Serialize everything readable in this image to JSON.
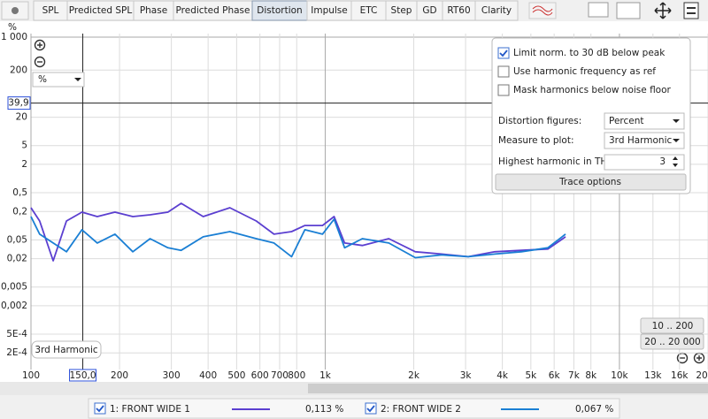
{
  "toolbar": {
    "tabs": [
      "SPL",
      "Predicted SPL",
      "Phase",
      "Predicted Phase",
      "Distortion",
      "Impulse",
      "ETC",
      "Step",
      "GD",
      "RT60",
      "Clarity"
    ],
    "selected": 4
  },
  "chart_data": {
    "type": "line",
    "y_unit": "%",
    "unit_selector": "%",
    "trace_label": "3rd Harmonic",
    "xscale": "log",
    "yscale": "log",
    "grid": true,
    "xlim": [
      100,
      20000
    ],
    "ylim": [
      8.9e-05,
      1188
    ],
    "xticks": [
      100,
      200,
      300,
      400,
      500,
      600,
      700,
      800,
      {
        "value": 1000,
        "label": "1k"
      },
      {
        "value": 2000,
        "label": "2k"
      },
      {
        "value": 3000,
        "label": "3k"
      },
      {
        "value": 4000,
        "label": "4k"
      },
      {
        "value": 5000,
        "label": "5k"
      },
      {
        "value": 6000,
        "label": "6k"
      },
      {
        "value": 7000,
        "label": "7k"
      },
      {
        "value": 8000,
        "label": "8k"
      },
      {
        "value": 10000,
        "label": "10k"
      },
      {
        "value": 13000,
        "label": "13k"
      },
      {
        "value": 16000,
        "label": "16k"
      },
      {
        "value": 20000,
        "label": "20"
      }
    ],
    "yticks": [
      {
        "value": 1000,
        "label": "1 000"
      },
      200,
      20,
      5,
      2,
      {
        "value": 0.5,
        "label": "0,5"
      },
      {
        "value": 0.2,
        "label": "0,2"
      },
      {
        "value": 0.05,
        "label": "0,05"
      },
      {
        "value": 0.02,
        "label": "0,02"
      },
      {
        "value": 0.005,
        "label": "0,005"
      },
      {
        "value": 0.002,
        "label": "0,002"
      },
      {
        "value": 0.0005,
        "label": "5E-4"
      },
      {
        "value": 0.0002,
        "label": "2E-4"
      }
    ],
    "cursor": {
      "x": {
        "value": 150,
        "label": "150,0"
      },
      "y": {
        "value": 39.9,
        "label": "39,9"
      }
    },
    "x": [
      100,
      107,
      119,
      132,
      149,
      168,
      193,
      222,
      254,
      292,
      324,
      385,
      474,
      583,
      670,
      769,
      853,
      979,
      1072,
      1164,
      1337,
      1645,
      2024,
      2490,
      3063,
      3770,
      4642,
      5710,
      6560
    ],
    "series": [
      {
        "name": "1: FRONT WIDE 1",
        "color": "#5b3fd0",
        "readout": "0,113 %",
        "values": [
          0.24,
          0.126,
          0.018,
          0.126,
          0.194,
          0.156,
          0.194,
          0.156,
          0.17,
          0.194,
          0.298,
          0.156,
          0.24,
          0.126,
          0.066,
          0.075,
          0.101,
          0.101,
          0.156,
          0.043,
          0.038,
          0.053,
          0.028,
          0.025,
          0.022,
          0.028,
          0.03,
          0.032,
          0.058
        ]
      },
      {
        "name": "2: FRONT WIDE 2",
        "color": "#1a7fd4",
        "readout": "0,067 %",
        "values": [
          0.156,
          0.066,
          0.043,
          0.028,
          0.082,
          0.043,
          0.066,
          0.028,
          0.053,
          0.034,
          0.03,
          0.058,
          0.075,
          0.053,
          0.043,
          0.022,
          0.082,
          0.066,
          0.137,
          0.034,
          0.053,
          0.043,
          0.021,
          0.024,
          0.022,
          0.025,
          0.028,
          0.034,
          0.066
        ]
      }
    ]
  },
  "controls": {
    "checkboxes": [
      {
        "label": "Limit norm. to 30 dB below peak",
        "checked": true
      },
      {
        "label": "Use harmonic frequency as ref",
        "checked": false
      },
      {
        "label": "Mask harmonics below noise floor",
        "checked": false
      }
    ],
    "distortion_figures": {
      "label": "Distortion figures:",
      "value": "Percent"
    },
    "measure_to_plot": {
      "label": "Measure to plot:",
      "value": "3rd Harmonic"
    },
    "highest_harmonic": {
      "label": "Highest harmonic in THD:",
      "value": 3
    },
    "trace_options": "Trace options"
  },
  "zoom_buttons": [
    "10 .. 200",
    "20 .. 20 000"
  ]
}
